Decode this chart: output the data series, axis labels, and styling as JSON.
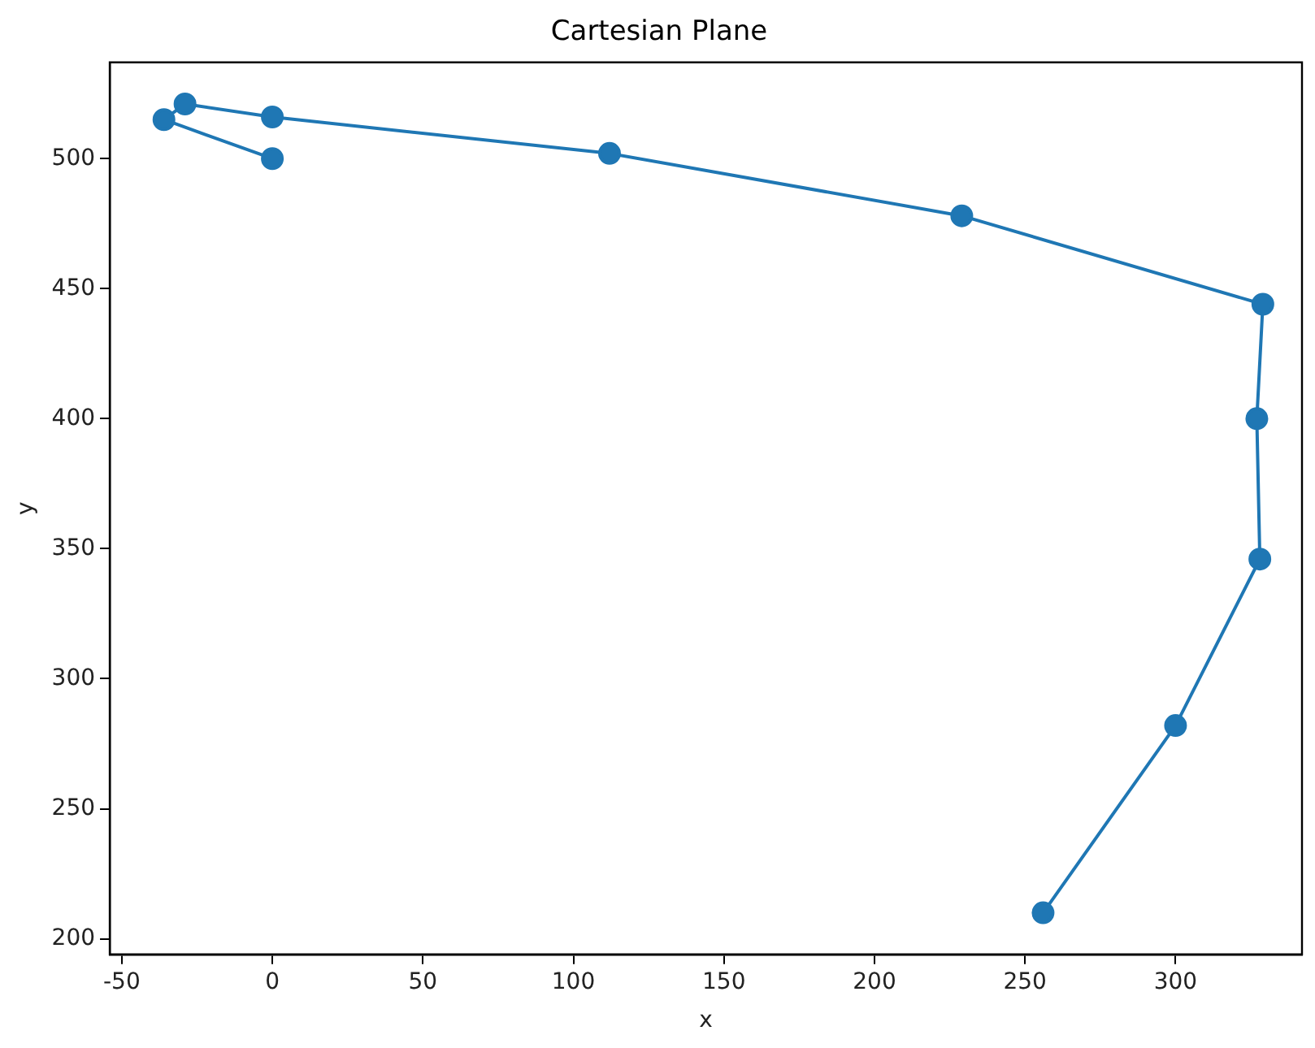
{
  "chart_data": {
    "type": "line",
    "title": "Cartesian Plane",
    "xlabel": "x",
    "ylabel": "y",
    "x": [
      0,
      -36,
      -29,
      0,
      112,
      229,
      329,
      327,
      328,
      300,
      256
    ],
    "series": [
      {
        "color": "#1f77b4",
        "values": [
          500,
          515,
          521,
          516,
          502,
          478,
          444,
          400,
          346,
          282,
          210
        ]
      }
    ],
    "xlim": [
      -54,
      342
    ],
    "xticks": [
      -50,
      0,
      50,
      100,
      150,
      200,
      250,
      300
    ],
    "ylim": [
      194,
      537
    ],
    "yticks": [
      200,
      250,
      300,
      350,
      400,
      450,
      500
    ],
    "marker": "circle",
    "line_style": "solid",
    "grid": false,
    "legend": false
  }
}
